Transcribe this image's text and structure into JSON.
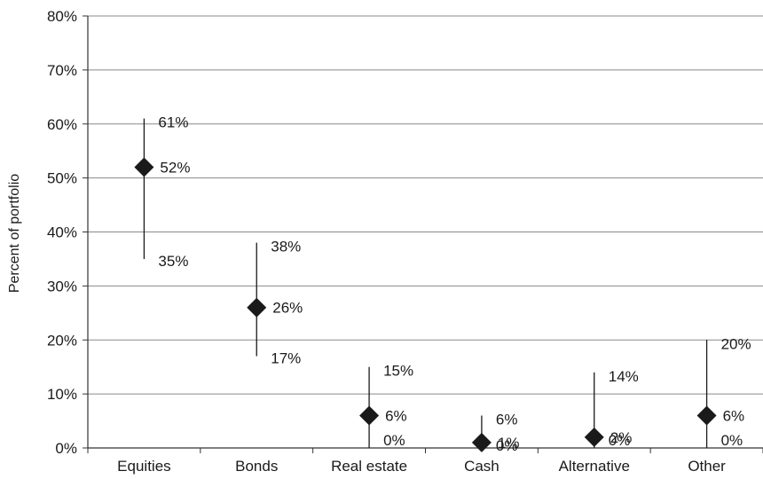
{
  "chart_data": {
    "type": "scatter",
    "title": "",
    "xlabel": "",
    "ylabel": "Percent of portfolio",
    "ylim": [
      0,
      80
    ],
    "yticks": [
      "0%",
      "10%",
      "20%",
      "30%",
      "40%",
      "50%",
      "60%",
      "70%",
      "80%"
    ],
    "grid": true,
    "categories": [
      "Equities",
      "Bonds",
      "Real estate",
      "Cash",
      "Alternative",
      "Other"
    ],
    "series": [
      {
        "values": [
          52,
          26,
          6,
          1,
          2,
          6
        ],
        "labels": [
          "52%",
          "26%",
          "6%",
          "1%",
          "2%",
          "6%"
        ]
      }
    ],
    "ranges": [
      {
        "min": 35,
        "max": 61,
        "min_label": "35%",
        "max_label": "61%"
      },
      {
        "min": 17,
        "max": 38,
        "min_label": "17%",
        "max_label": "38%"
      },
      {
        "min": 0,
        "max": 15,
        "min_label": "0%",
        "max_label": "15%"
      },
      {
        "min": 0,
        "max": 6,
        "min_label": "0%",
        "max_label": "6%"
      },
      {
        "min": 0,
        "max": 14,
        "min_label": "0%",
        "max_label": "14%"
      },
      {
        "min": 0,
        "max": 20,
        "min_label": "0%",
        "max_label": "20%"
      }
    ],
    "colors": {
      "marker": "#1a1a1a",
      "grid": "#8a8a8a",
      "axis": "#333333"
    }
  }
}
